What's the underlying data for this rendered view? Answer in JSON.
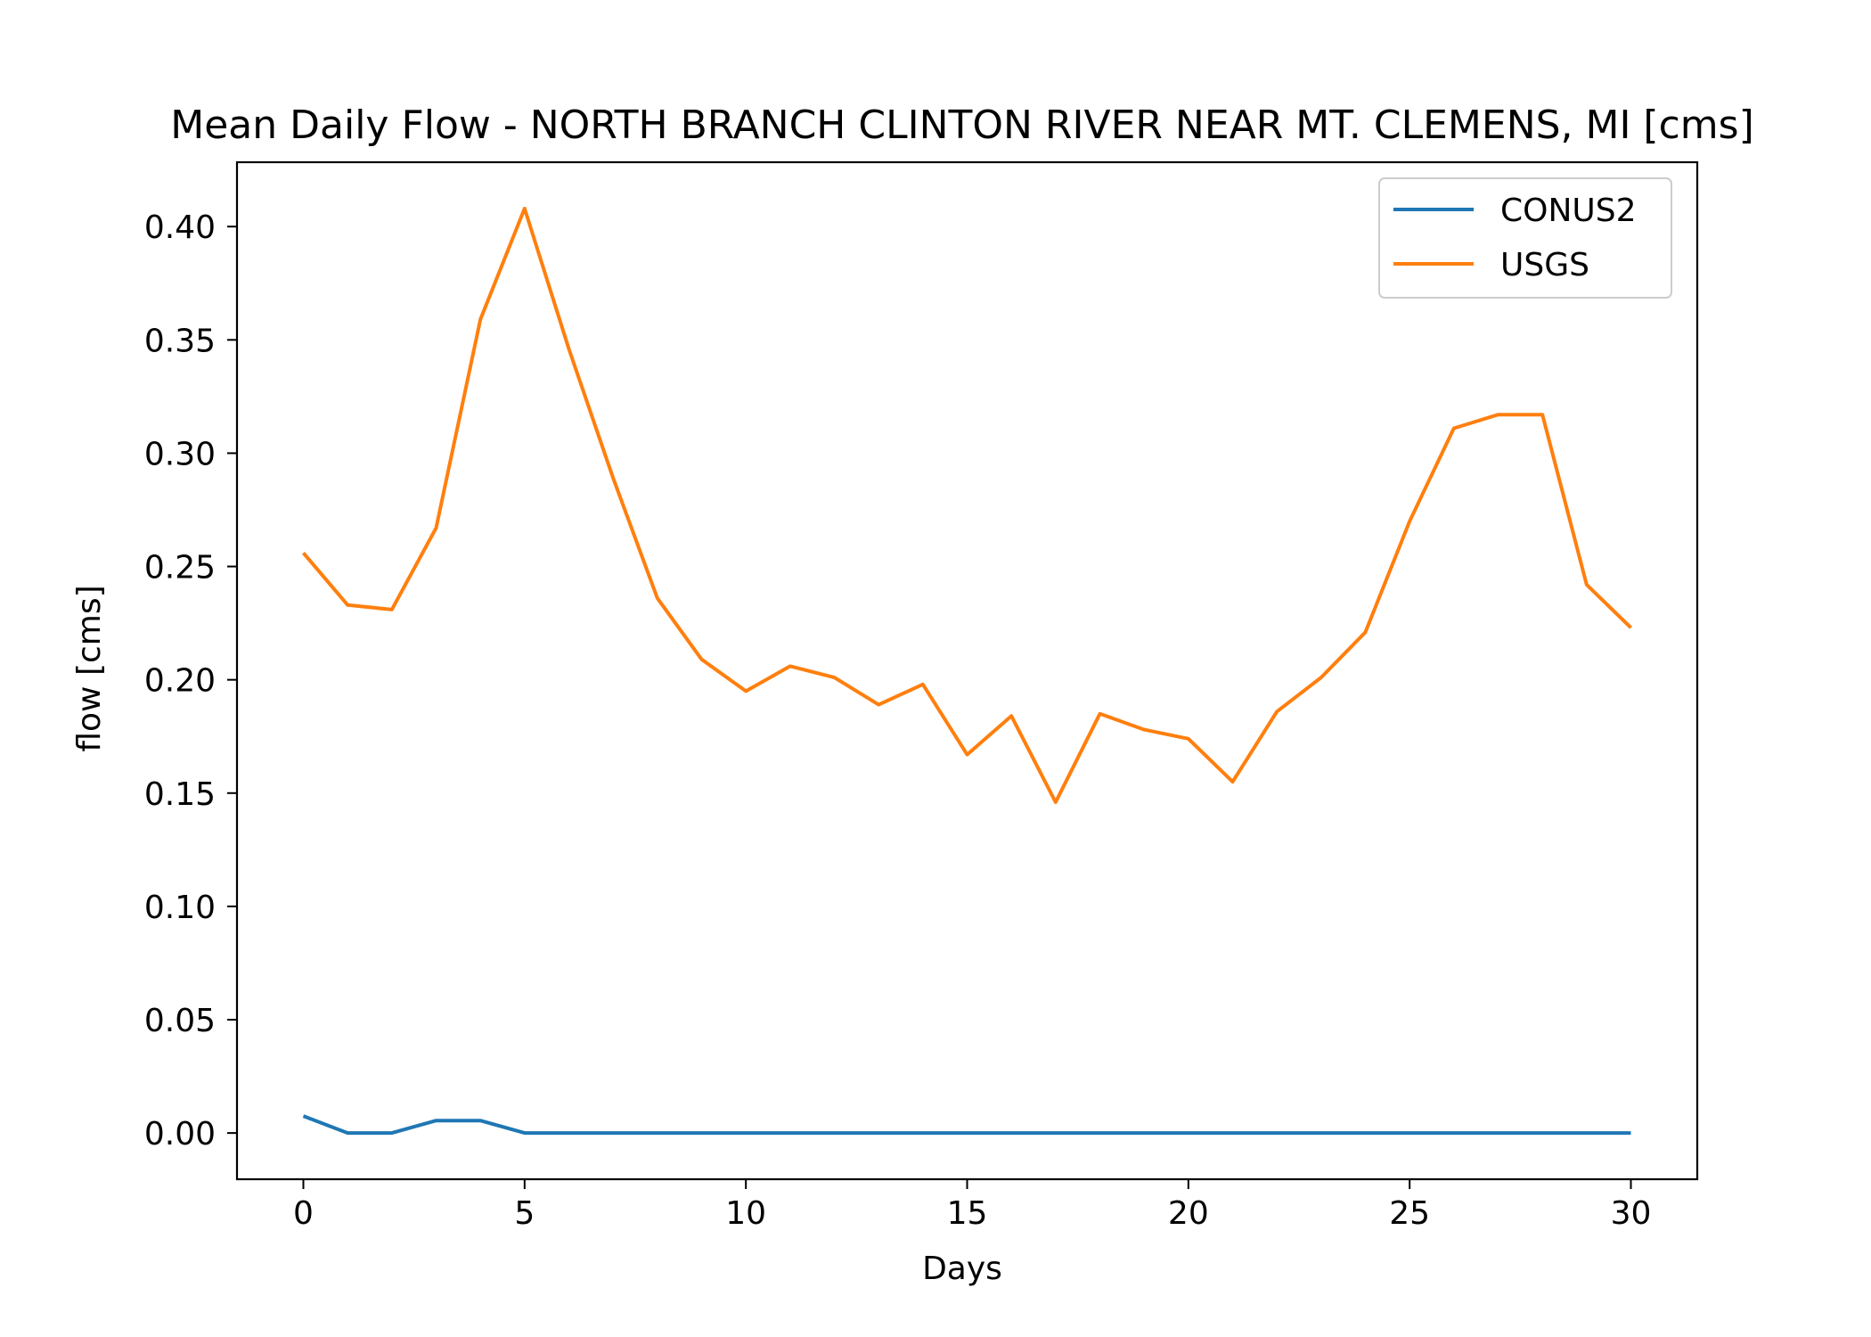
{
  "chart_data": {
    "type": "line",
    "title": "Mean Daily Flow - NORTH BRANCH CLINTON RIVER NEAR MT. CLEMENS, MI [cms]",
    "xlabel": "Days",
    "ylabel": "flow [cms]",
    "xlim": [
      -1.5,
      31.5
    ],
    "ylim": [
      -0.0204,
      0.4284
    ],
    "x_ticks": [
      0,
      5,
      10,
      15,
      20,
      25,
      30
    ],
    "x_tick_labels": [
      "0",
      "5",
      "10",
      "15",
      "20",
      "25",
      "30"
    ],
    "y_ticks": [
      0.0,
      0.05,
      0.1,
      0.15,
      0.2,
      0.25,
      0.3,
      0.35,
      0.4
    ],
    "y_tick_labels": [
      "0.00",
      "0.05",
      "0.10",
      "0.15",
      "0.20",
      "0.25",
      "0.30",
      "0.35",
      "0.40"
    ],
    "grid": false,
    "legend_position": "top-right",
    "x": [
      0,
      1,
      2,
      3,
      4,
      5,
      6,
      7,
      8,
      9,
      10,
      11,
      12,
      13,
      14,
      15,
      16,
      17,
      18,
      19,
      20,
      21,
      22,
      23,
      24,
      25,
      26,
      27,
      28,
      29,
      30
    ],
    "series": [
      {
        "name": "CONUS2",
        "color": "#1f77b4",
        "values": [
          0.0075,
          0,
          0,
          0.0055,
          0.0055,
          0,
          0,
          0,
          0,
          0,
          0,
          0,
          0,
          0,
          0,
          0,
          0,
          0,
          0,
          0,
          0,
          0,
          0,
          0,
          0,
          0,
          0,
          0,
          0,
          0,
          0
        ]
      },
      {
        "name": "USGS",
        "color": "#ff7f0e",
        "values": [
          0.256,
          0.233,
          0.231,
          0.267,
          0.359,
          0.408,
          0.346,
          0.289,
          0.236,
          0.209,
          0.195,
          0.206,
          0.201,
          0.189,
          0.198,
          0.167,
          0.184,
          0.146,
          0.185,
          0.178,
          0.174,
          0.155,
          0.186,
          0.201,
          0.221,
          0.27,
          0.311,
          0.317,
          0.317,
          0.242,
          0.223
        ]
      }
    ]
  }
}
